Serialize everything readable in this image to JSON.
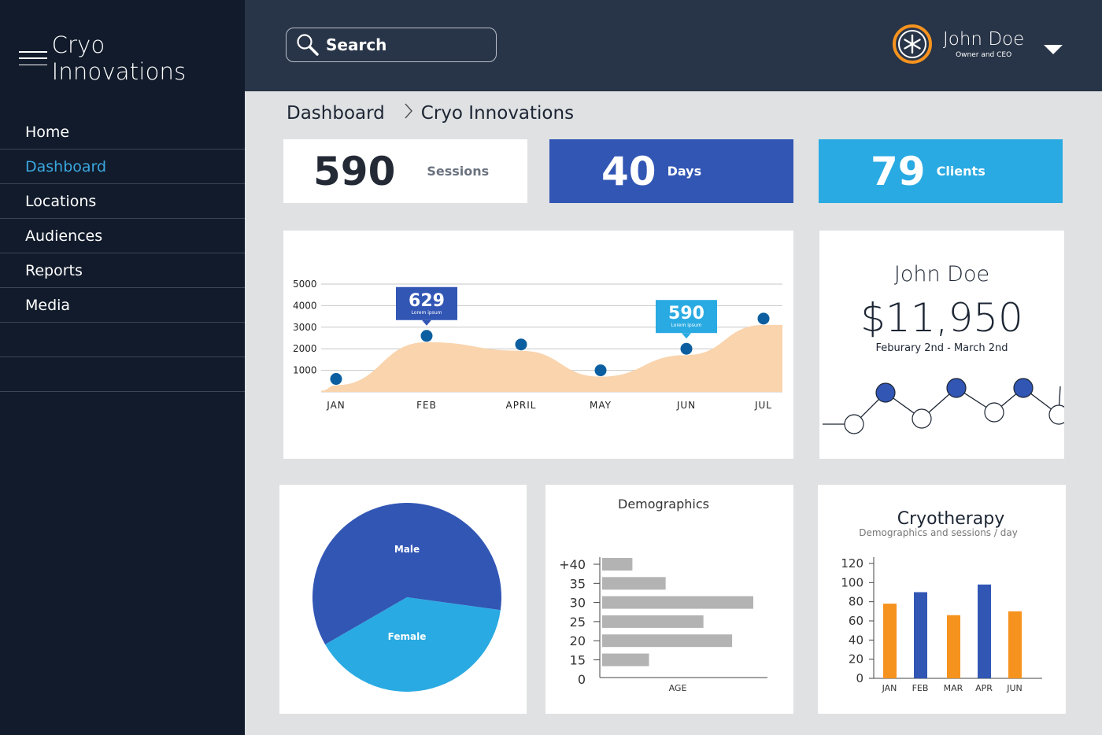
{
  "app": {
    "title": "Cryo Innovations"
  },
  "nav": {
    "items": [
      "Home",
      "Dashboard",
      "Locations",
      "Audiences",
      "Reports",
      "Media",
      "",
      ""
    ],
    "active_index": 1
  },
  "search": {
    "label": "Search"
  },
  "user": {
    "name": "John Doe",
    "role": "Owner and CEO"
  },
  "breadcrumb": {
    "root": "Dashboard",
    "current": "Cryo Innovations"
  },
  "stats": [
    {
      "value": "590",
      "label": "Sessions",
      "color": "#ffffff",
      "text_color": "#232a36"
    },
    {
      "value": "40",
      "label": "Days",
      "color": "#3256b4",
      "text_color": "#ffffff"
    },
    {
      "value": "79",
      "label": "Clients",
      "color": "#2aaae2",
      "text_color": "#ffffff"
    }
  ],
  "colors": {
    "sidebar": "#111b2b",
    "topbar": "#283447",
    "accent_blue": "#3256b4",
    "light_blue": "#2aaae2",
    "orange": "#f6931e",
    "area": "#f9d4ad",
    "point": "#0b5fa0"
  },
  "chart_data": [
    {
      "type": "area",
      "categories": [
        "JAN",
        "FEB",
        "APRIL",
        "MAY",
        "JUN",
        "JUL"
      ],
      "values": [
        600,
        2600,
        2200,
        1000,
        2000,
        3400
      ],
      "yticks": [
        1000,
        2000,
        3000,
        4000,
        5000
      ],
      "ylim": [
        0,
        5000
      ],
      "callouts": [
        {
          "index": 1,
          "value": "629",
          "sub": "Lorem ipsum",
          "color": "#3256b4"
        },
        {
          "index": 4,
          "value": "590",
          "sub": "Lorem ipsum",
          "color": "#2aaae2"
        }
      ]
    },
    {
      "type": "pie",
      "slices": [
        {
          "label": "Male",
          "value": 60.5,
          "color": "#3256b4"
        },
        {
          "label": "Female",
          "value": 39.5,
          "color": "#2aaae2"
        }
      ]
    },
    {
      "type": "bar",
      "orientation": "horizontal",
      "title": "Demographics",
      "xlabel": "AGE",
      "categories": [
        "+40",
        "35",
        "30",
        "25",
        "20",
        "15"
      ],
      "ticks": [
        "+40",
        "35",
        "30",
        "25",
        "20",
        "15",
        "0"
      ],
      "values": [
        20,
        42,
        100,
        67,
        86,
        31
      ],
      "xlim": [
        0,
        110
      ]
    },
    {
      "type": "bar",
      "title": "Cryotherapy",
      "subtitle": "Demographics and sessions / day",
      "categories": [
        "JAN",
        "FEB",
        "MAR",
        "APR",
        "JUN",
        "JUN"
      ],
      "values": [
        78,
        90,
        66,
        98,
        0,
        70
      ],
      "colors": [
        "#f6931e",
        "#3256b4",
        "#f6931e",
        "#3256b4",
        "#3256b4",
        "#f6931e"
      ],
      "yticks": [
        0,
        20,
        40,
        60,
        80,
        100,
        120
      ],
      "ylim": [
        0,
        120
      ]
    }
  ],
  "revenue": {
    "name": "John Doe",
    "amount": "$11,950",
    "period": "Feburary 2nd - March 2nd",
    "spark_values": [
      3,
      1,
      4,
      1,
      4,
      1,
      3
    ]
  }
}
